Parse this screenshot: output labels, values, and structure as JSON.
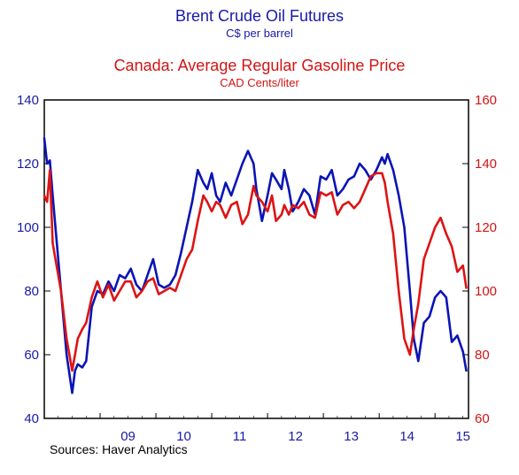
{
  "chart_data": {
    "type": "line",
    "title": "Brent Crude Oil Futures",
    "subtitle": "C$ per barrel",
    "title2": "Canada: Average Regular Gasoline Price",
    "subtitle2": "CAD Cents/liter",
    "source": "Sources:   Haver Analytics",
    "x_ticks": [
      "09",
      "10",
      "11",
      "12",
      "13",
      "14",
      "15"
    ],
    "xlim": [
      2008.0,
      2015.6
    ],
    "y_left": {
      "lim": [
        40,
        140
      ],
      "ticks": [
        40,
        60,
        80,
        100,
        120,
        140
      ]
    },
    "y_right": {
      "lim": [
        60,
        160
      ],
      "ticks": [
        60,
        80,
        100,
        120,
        140,
        160
      ]
    },
    "grid": false,
    "series": [
      {
        "name": "Brent Crude Oil Futures",
        "axis": "left",
        "color": "#0a14b4",
        "x": [
          2008.0,
          2008.05,
          2008.1,
          2008.15,
          2008.2,
          2008.3,
          2008.4,
          2008.5,
          2008.55,
          2008.6,
          2008.68,
          2008.75,
          2008.85,
          2008.95,
          2009.05,
          2009.15,
          2009.25,
          2009.35,
          2009.45,
          2009.55,
          2009.65,
          2009.75,
          2009.85,
          2009.95,
          2010.05,
          2010.15,
          2010.25,
          2010.35,
          2010.45,
          2010.55,
          2010.65,
          2010.75,
          2010.85,
          2010.92,
          2011.0,
          2011.08,
          2011.15,
          2011.25,
          2011.35,
          2011.45,
          2011.55,
          2011.65,
          2011.75,
          2011.8,
          2011.9,
          2012.0,
          2012.08,
          2012.15,
          2012.25,
          2012.3,
          2012.38,
          2012.45,
          2012.55,
          2012.65,
          2012.75,
          2012.85,
          2012.95,
          2013.05,
          2013.15,
          2013.25,
          2013.35,
          2013.45,
          2013.55,
          2013.65,
          2013.75,
          2013.85,
          2013.95,
          2014.05,
          2014.1,
          2014.15,
          2014.25,
          2014.35,
          2014.45,
          2014.55,
          2014.62,
          2014.7,
          2014.8,
          2014.9,
          2015.0,
          2015.1,
          2015.2,
          2015.3,
          2015.4,
          2015.5,
          2015.56
        ],
        "y": [
          128,
          120,
          121,
          110,
          100,
          80,
          60,
          48,
          55,
          57,
          56,
          58,
          75,
          80,
          79,
          83,
          80,
          85,
          84,
          87,
          82,
          80,
          85,
          90,
          82,
          81,
          82,
          85,
          92,
          100,
          108,
          118,
          114,
          112,
          117,
          110,
          108,
          114,
          110,
          115,
          120,
          124,
          120,
          112,
          102,
          110,
          117,
          115,
          112,
          118,
          112,
          105,
          108,
          112,
          110,
          104,
          116,
          115,
          118,
          110,
          112,
          115,
          116,
          120,
          118,
          115,
          118,
          122,
          120,
          123,
          118,
          110,
          100,
          80,
          65,
          58,
          70,
          72,
          78,
          80,
          78,
          64,
          66,
          61,
          55
        ],
        "name_visible": false
      },
      {
        "name": "Canada: Average Regular Gasoline Price",
        "axis": "right",
        "color": "#dc1414",
        "x": [
          2008.0,
          2008.05,
          2008.1,
          2008.15,
          2008.2,
          2008.3,
          2008.4,
          2008.5,
          2008.55,
          2008.6,
          2008.68,
          2008.75,
          2008.85,
          2008.95,
          2009.05,
          2009.15,
          2009.25,
          2009.35,
          2009.45,
          2009.55,
          2009.65,
          2009.75,
          2009.85,
          2009.95,
          2010.05,
          2010.15,
          2010.25,
          2010.35,
          2010.45,
          2010.55,
          2010.65,
          2010.75,
          2010.85,
          2010.92,
          2011.0,
          2011.08,
          2011.15,
          2011.25,
          2011.35,
          2011.45,
          2011.55,
          2011.65,
          2011.75,
          2011.8,
          2011.9,
          2012.0,
          2012.08,
          2012.15,
          2012.25,
          2012.3,
          2012.38,
          2012.45,
          2012.55,
          2012.65,
          2012.75,
          2012.85,
          2012.95,
          2013.05,
          2013.15,
          2013.25,
          2013.35,
          2013.45,
          2013.55,
          2013.65,
          2013.75,
          2013.85,
          2013.95,
          2014.05,
          2014.1,
          2014.15,
          2014.25,
          2014.35,
          2014.45,
          2014.55,
          2014.62,
          2014.7,
          2014.8,
          2014.9,
          2015.0,
          2015.1,
          2015.2,
          2015.3,
          2015.4,
          2015.5,
          2015.56
        ],
        "y": [
          130,
          128,
          138,
          115,
          110,
          100,
          85,
          75,
          80,
          85,
          88,
          90,
          98,
          103,
          98,
          102,
          97,
          100,
          103,
          103,
          98,
          100,
          103,
          104,
          99,
          100,
          101,
          100,
          105,
          110,
          113,
          122,
          130,
          128,
          125,
          128,
          127,
          123,
          127,
          128,
          121,
          124,
          133,
          130,
          128,
          125,
          130,
          122,
          124,
          127,
          124,
          127,
          126,
          128,
          124,
          123,
          131,
          130,
          131,
          124,
          127,
          128,
          126,
          128,
          132,
          136,
          137,
          137,
          134,
          128,
          118,
          100,
          85,
          80,
          88,
          96,
          110,
          115,
          120,
          123,
          118,
          114,
          106,
          108,
          101
        ],
        "name_visible": false
      }
    ]
  }
}
